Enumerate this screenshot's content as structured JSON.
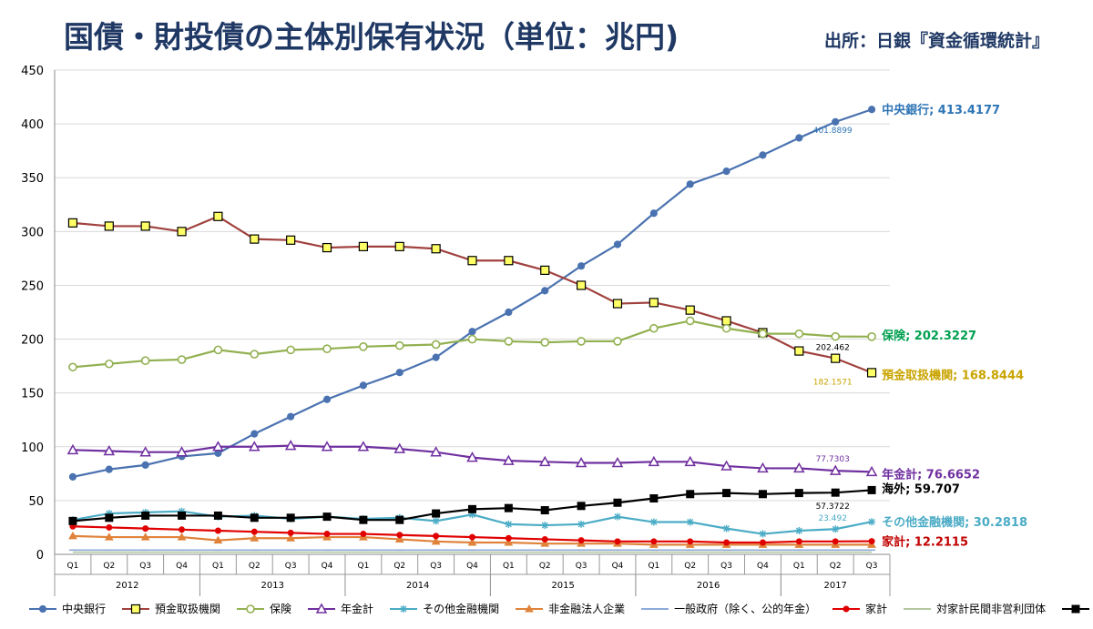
{
  "header": {
    "title": "国債・財投債の主体別保有状況（単位：兆円)",
    "source": "出所：日銀『資金循環統計』"
  },
  "chart_data": {
    "type": "line",
    "ylim": [
      0,
      450
    ],
    "yticks": [
      0,
      50,
      100,
      150,
      200,
      250,
      300,
      350,
      400,
      450
    ],
    "grid": true,
    "legend_position": "bottom",
    "quarters": [
      "Q1",
      "Q2",
      "Q3",
      "Q4",
      "Q1",
      "Q2",
      "Q3",
      "Q4",
      "Q1",
      "Q2",
      "Q3",
      "Q4",
      "Q1",
      "Q2",
      "Q3",
      "Q4",
      "Q1",
      "Q2",
      "Q3",
      "Q4",
      "Q1",
      "Q2",
      "Q3"
    ],
    "years": [
      {
        "label": "2012",
        "start": 0,
        "count": 4
      },
      {
        "label": "2013",
        "start": 4,
        "count": 4
      },
      {
        "label": "2014",
        "start": 8,
        "count": 4
      },
      {
        "label": "2015",
        "start": 12,
        "count": 4
      },
      {
        "label": "2016",
        "start": 16,
        "count": 4
      },
      {
        "label": "2017",
        "start": 20,
        "count": 3
      }
    ],
    "series": [
      {
        "name": "中央銀行",
        "color": "#4a72b0",
        "marker": "circle",
        "values": [
          72,
          79,
          83,
          91,
          94,
          112,
          128,
          144,
          157,
          169,
          183,
          207,
          225,
          245,
          268,
          288,
          317,
          344,
          356,
          371,
          387,
          401.8899,
          413.4177
        ],
        "end_label": "中央銀行; 413.4177",
        "end_color": "#2e75b6",
        "point_label": {
          "index": 21,
          "text": "401.8899",
          "color": "#2e75b6"
        }
      },
      {
        "name": "預金取扱機関",
        "color": "#a0413e",
        "marker": "square-yellow",
        "values": [
          308,
          305,
          305,
          300,
          314,
          293,
          292,
          285,
          286,
          286,
          284,
          273,
          273,
          264,
          250,
          233,
          234,
          227,
          217,
          206,
          189,
          182.1571,
          168.8444
        ],
        "end_label": "預金取扱機関; 168.8444",
        "end_color": "#c9a400",
        "point_label": {
          "index": 21,
          "text": "182.1571",
          "color": "#c9a400"
        }
      },
      {
        "name": "保険",
        "color": "#92b050",
        "marker": "circle-open",
        "values": [
          174,
          177,
          180,
          181,
          190,
          186,
          190,
          191,
          193,
          194,
          195,
          200,
          198,
          197,
          198,
          198,
          210,
          217,
          210,
          205,
          205,
          202.462,
          202.3227
        ],
        "end_label": "保険; 202.3227",
        "end_color": "#00a050",
        "point_label": {
          "index": 21,
          "text": "202.462",
          "color": "#000000"
        }
      },
      {
        "name": "年金計",
        "color": "#7030a0",
        "marker": "triangle",
        "values": [
          97,
          96,
          95,
          95,
          100,
          100,
          101,
          100,
          100,
          98,
          95,
          90,
          87,
          86,
          85,
          85,
          86,
          86,
          82,
          80,
          80,
          77.7303,
          76.6652
        ],
        "end_label": "年金計; 76.6652",
        "end_color": "#7030a0",
        "point_label": {
          "index": 21,
          "text": "77.7303",
          "color": "#7030a0"
        }
      },
      {
        "name": "その他金融機関",
        "color": "#4bacc6",
        "marker": "star",
        "values": [
          32,
          38,
          39,
          40,
          35,
          36,
          33,
          35,
          33,
          34,
          31,
          37,
          28,
          27,
          28,
          35,
          30,
          30,
          24,
          19,
          22,
          23.492,
          30.2818
        ],
        "end_label": "その他金融機関; 30.2818",
        "end_color": "#4bacc6",
        "point_label": {
          "index": 21,
          "text": "23.492",
          "color": "#4bacc6"
        }
      },
      {
        "name": "非金融法人企業",
        "color": "#e0823a",
        "marker": "triangle-filled",
        "values": [
          17,
          16,
          16,
          16,
          13,
          15,
          15,
          16,
          16,
          14,
          12,
          11,
          11,
          10,
          10,
          10,
          9,
          9,
          9,
          9,
          9,
          9,
          9
        ]
      },
      {
        "name": "一般政府（除く、公的年金）",
        "color": "#8eaadb",
        "marker": "dash",
        "values": [
          4,
          4,
          4,
          4,
          4,
          4,
          4,
          4,
          4,
          4,
          4,
          4,
          4,
          4,
          4,
          4,
          4,
          4,
          4,
          4,
          4,
          4,
          4
        ]
      },
      {
        "name": "家計",
        "color": "#e00000",
        "marker": "circle-filled",
        "values": [
          26,
          25,
          24,
          23,
          22,
          21,
          20,
          19,
          19,
          18,
          17,
          16,
          15,
          14,
          13,
          12,
          12,
          12,
          11,
          11,
          12,
          12,
          12.2115
        ],
        "end_label": "家計; 12.2115",
        "end_color": "#c00000"
      },
      {
        "name": "対家計民間非営利団体",
        "color": "#b4c7a0",
        "marker": "none",
        "values": [
          2,
          2,
          2,
          2,
          2,
          2,
          2,
          2,
          2,
          2,
          2,
          2,
          2,
          2,
          2,
          2,
          2,
          2,
          2,
          2,
          2,
          2,
          2
        ]
      },
      {
        "name": "海外",
        "color": "#000000",
        "marker": "square-black",
        "values": [
          31,
          34,
          36,
          36,
          36,
          34,
          34,
          35,
          32,
          32,
          38,
          42,
          43,
          41,
          45,
          48,
          52,
          56,
          57,
          56,
          57,
          57.3722,
          59.707
        ],
        "end_label": "海外; 59.707",
        "end_color": "#000000",
        "point_label": {
          "index": 21,
          "text": "57.3722",
          "color": "#000000"
        }
      }
    ]
  }
}
